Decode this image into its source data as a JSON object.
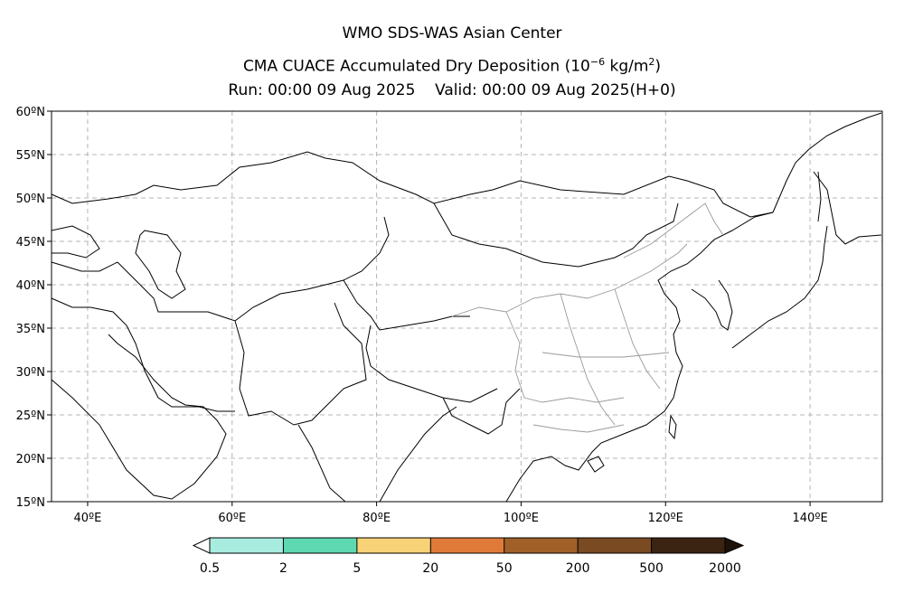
{
  "header": {
    "center": "WMO SDS-WAS Asian Center",
    "product_prefix": "CMA CUACE Accumulated Dry Deposition (10",
    "product_exp": "−6",
    "product_unit": " kg/m",
    "product_unit_exp": "2",
    "product_suffix": ")",
    "run": "Run: 00:00 09 Aug 2025",
    "valid": "Valid: 00:00 09 Aug 2025(H+0)"
  },
  "map": {
    "lat_labels": [
      "60ºN",
      "55ºN",
      "50ºN",
      "45ºN",
      "40ºN",
      "35ºN",
      "30ºN",
      "25ºN",
      "20ºN",
      "15ºN"
    ],
    "lon_labels": [
      "40ºE",
      "60ºE",
      "80ºE",
      "100ºE",
      "120ºE",
      "140ºE"
    ],
    "lat_range": [
      15,
      60
    ],
    "lon_range": [
      35,
      150
    ],
    "grid": true
  },
  "colorbar": {
    "colors": [
      "#a8ece0",
      "#5dd8b0",
      "#f8d276",
      "#e07a38",
      "#a06028",
      "#7a4a22",
      "#3c2412"
    ],
    "tick_labels": [
      "0.5",
      "2",
      "5",
      "20",
      "50",
      "200",
      "500",
      "2000"
    ]
  }
}
